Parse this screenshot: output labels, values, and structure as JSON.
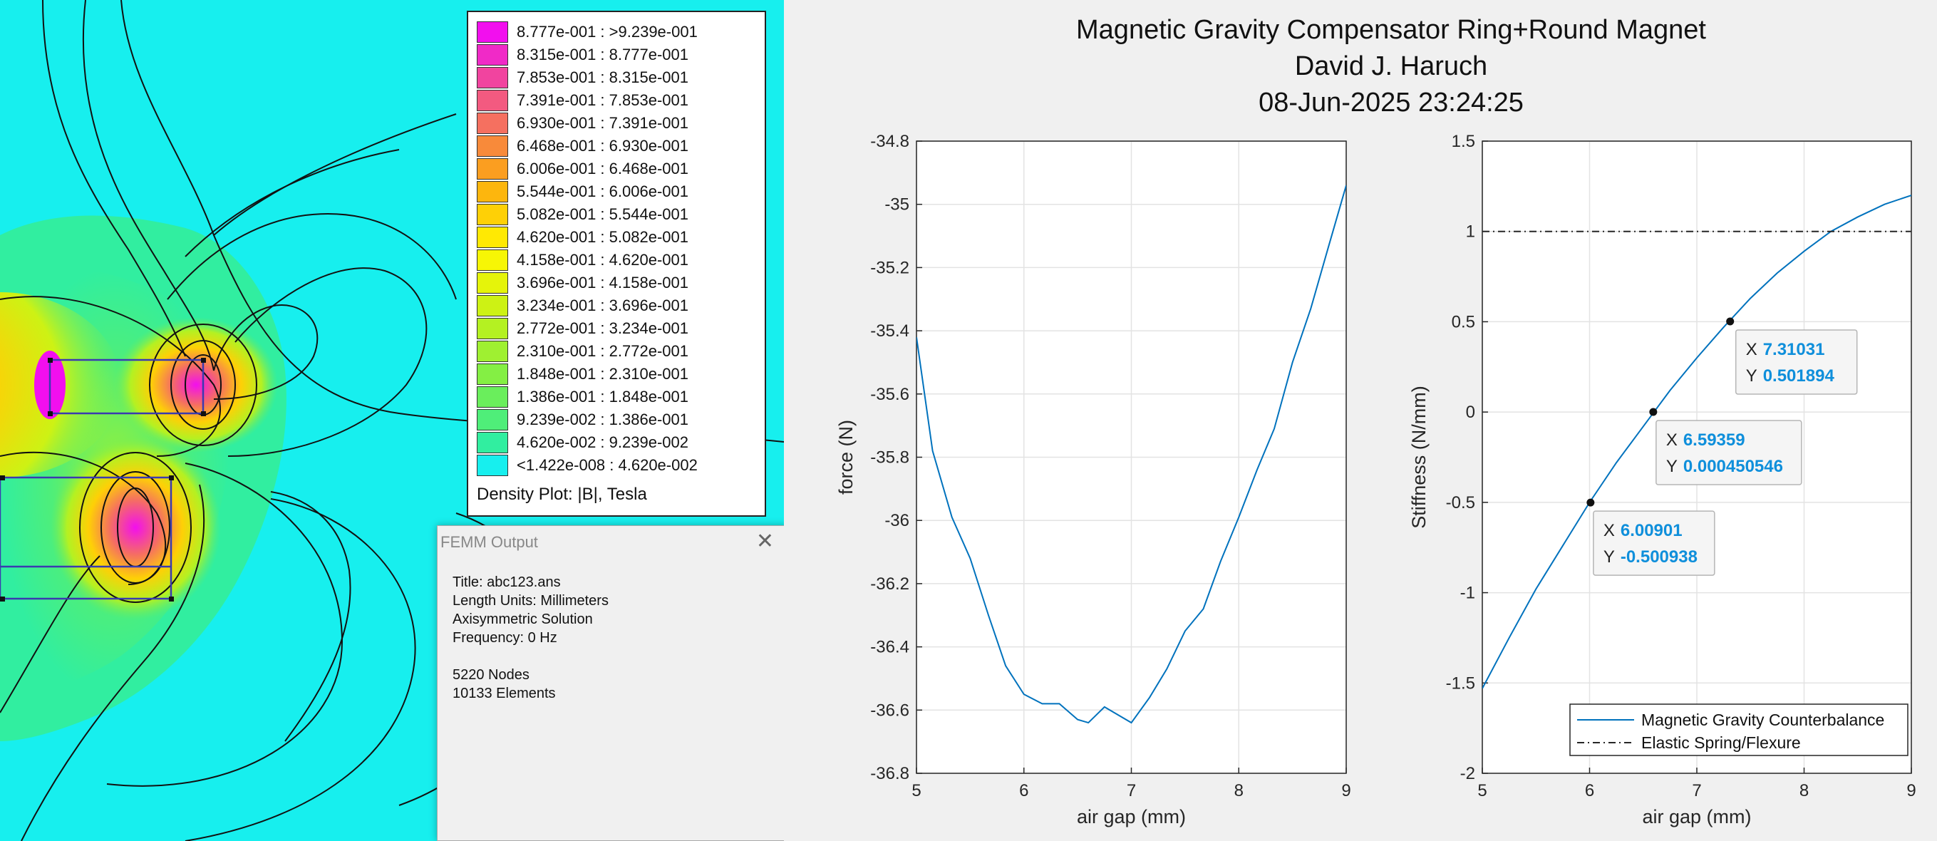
{
  "femm": {
    "legend": {
      "entries": [
        {
          "label": "8.777e-001 : >9.239e-001",
          "color": "#f20fee"
        },
        {
          "label": "8.315e-001 : 8.777e-001",
          "color": "#f02ac7"
        },
        {
          "label": "7.853e-001 : 8.315e-001",
          "color": "#f1449f"
        },
        {
          "label": "7.391e-001 : 7.853e-001",
          "color": "#f35a80"
        },
        {
          "label": "6.930e-001 : 7.391e-001",
          "color": "#f57060"
        },
        {
          "label": "6.468e-001 : 6.930e-001",
          "color": "#f88a3a"
        },
        {
          "label": "6.006e-001 : 6.468e-001",
          "color": "#fb9e20"
        },
        {
          "label": "5.544e-001 : 6.006e-001",
          "color": "#fdb60d"
        },
        {
          "label": "5.082e-001 : 5.544e-001",
          "color": "#fed006"
        },
        {
          "label": "4.620e-001 : 5.082e-001",
          "color": "#ffe903"
        },
        {
          "label": "4.158e-001 : 4.620e-001",
          "color": "#f7f605"
        },
        {
          "label": "3.696e-001 : 4.158e-001",
          "color": "#e5f40a"
        },
        {
          "label": "3.234e-001 : 3.696e-001",
          "color": "#cdf214"
        },
        {
          "label": "2.772e-001 : 3.234e-001",
          "color": "#b4f122"
        },
        {
          "label": "2.310e-001 : 2.772e-001",
          "color": "#9ff031"
        },
        {
          "label": "1.848e-001 : 2.310e-001",
          "color": "#84ef44"
        },
        {
          "label": "1.386e-001 : 1.848e-001",
          "color": "#6aee5c"
        },
        {
          "label": "9.239e-002 : 1.386e-001",
          "color": "#4fee79"
        },
        {
          "label": "4.620e-002 : 9.239e-002",
          "color": "#31eea0"
        },
        {
          "label": "<1.422e-008 : 4.620e-002",
          "color": "#17efee"
        }
      ],
      "caption": "Density Plot: |B|, Tesla"
    },
    "output": {
      "title": "FEMM Output",
      "lines": [
        "Title: abc123.ans",
        "Length Units: Millimeters",
        "Axisymmetric Solution",
        "Frequency: 0 Hz",
        "5220 Nodes",
        "10133 Elements"
      ]
    }
  },
  "figure": {
    "title_lines": [
      "Magnetic Gravity Compensator Ring+Round Magnet",
      "David J. Haruch",
      "08-Jun-2025 23:24:25"
    ],
    "datatips": [
      {
        "x_label": "X",
        "x_value": "7.31031",
        "y_label": "Y",
        "y_value": "0.501894"
      },
      {
        "x_label": "X",
        "x_value": "6.59359",
        "y_label": "Y",
        "y_value": "0.000450546"
      },
      {
        "x_label": "X",
        "x_value": "6.00901",
        "y_label": "Y",
        "y_value": "-0.500938"
      }
    ],
    "line_color": "#0072bd"
  },
  "chart_data": [
    {
      "type": "line",
      "title": "",
      "xlabel": "air gap (mm)",
      "ylabel": "force (N)",
      "xlim": [
        5,
        9
      ],
      "ylim": [
        -36.8,
        -34.8
      ],
      "xticks": [
        "5",
        "6",
        "7",
        "8",
        "9"
      ],
      "yticks": [
        "-34.8",
        "-35",
        "-35.2",
        "-35.4",
        "-35.6",
        "-35.8",
        "-36",
        "-36.2",
        "-36.4",
        "-36.6",
        "-36.8"
      ],
      "grid": true,
      "series": [
        {
          "x": [
            5,
            5.15,
            5.33,
            5.5,
            5.67,
            5.83,
            6,
            6.17,
            6.33,
            6.5,
            6.6,
            6.75,
            6.85,
            7,
            7.17,
            7.33,
            7.5,
            7.67,
            7.83,
            8,
            8.17,
            8.33,
            8.5,
            8.67,
            8.83,
            9
          ],
          "y": [
            -35.42,
            -35.78,
            -35.99,
            -36.12,
            -36.3,
            -36.46,
            -36.55,
            -36.58,
            -36.58,
            -36.63,
            -36.64,
            -36.59,
            -36.61,
            -36.64,
            -36.56,
            -36.47,
            -36.35,
            -36.28,
            -36.13,
            -35.99,
            -35.84,
            -35.71,
            -35.5,
            -35.33,
            -35.14,
            -34.94
          ]
        }
      ]
    },
    {
      "type": "line",
      "title": "",
      "xlabel": "air gap (mm)",
      "ylabel": "Stiffness (N/mm)",
      "xlim": [
        5,
        9
      ],
      "ylim": [
        -2,
        1.5
      ],
      "xticks": [
        "5",
        "6",
        "7",
        "8",
        "9"
      ],
      "yticks": [
        "1.5",
        "1",
        "0.5",
        "0",
        "-0.5",
        "-1",
        "-1.5",
        "-2"
      ],
      "grid": true,
      "legend_position": "bottom-right",
      "series": [
        {
          "name": "Magnetic Gravity Counterbalance",
          "style": "solid",
          "x": [
            5,
            5.25,
            5.5,
            5.75,
            6,
            6.25,
            6.5,
            6.75,
            7,
            7.25,
            7.5,
            7.75,
            8,
            8.25,
            8.5,
            8.75,
            9
          ],
          "y": [
            -1.53,
            -1.25,
            -0.98,
            -0.74,
            -0.5,
            -0.28,
            -0.08,
            0.12,
            0.3,
            0.47,
            0.63,
            0.77,
            0.89,
            1,
            1.08,
            1.15,
            1.2
          ]
        },
        {
          "name": "Elastic Spring/Flexure",
          "style": "dash-dot",
          "x": [
            5,
            9
          ],
          "y": [
            1,
            1
          ]
        }
      ]
    }
  ]
}
